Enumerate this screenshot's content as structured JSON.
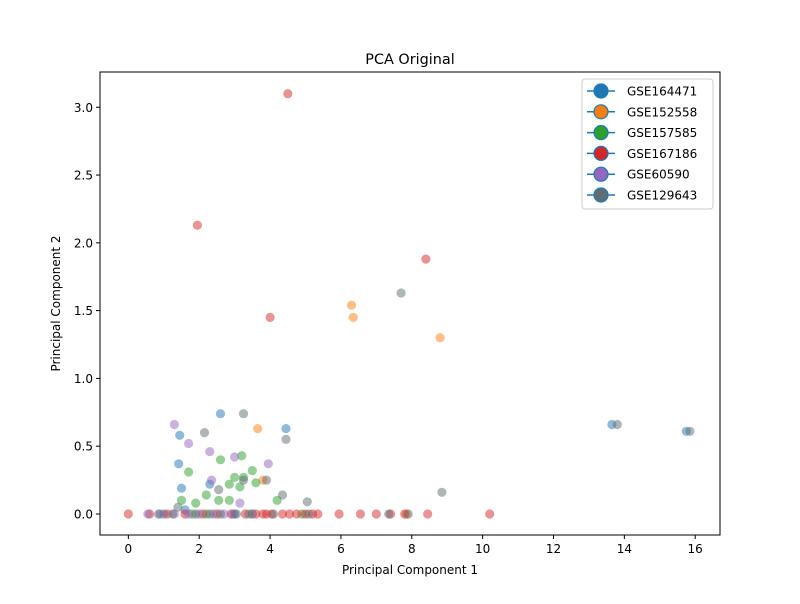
{
  "chart_data": {
    "type": "scatter",
    "title": "PCA Original",
    "xlabel": "Principal Component 1",
    "ylabel": "Principal Component 2",
    "xlim": [
      -0.8,
      16.7
    ],
    "ylim": [
      -0.155,
      3.26
    ],
    "x_ticks": [
      0,
      2,
      4,
      6,
      8,
      10,
      12,
      14,
      16
    ],
    "y_ticks": [
      0.0,
      0.5,
      1.0,
      1.5,
      2.0,
      2.5,
      3.0
    ],
    "x_tick_labels": [
      "0",
      "2",
      "4",
      "6",
      "8",
      "10",
      "12",
      "14",
      "16"
    ],
    "y_tick_labels": [
      "0.0",
      "0.5",
      "1.0",
      "1.5",
      "2.0",
      "2.5",
      "3.0"
    ],
    "grid": false,
    "legend_position": "top-right",
    "point_alpha": 0.5,
    "series": [
      {
        "name": "GSE164471",
        "color": "#1f77b4",
        "points": [
          [
            2.6,
            0.74
          ],
          [
            4.45,
            0.63
          ],
          [
            1.45,
            0.58
          ],
          [
            1.42,
            0.37
          ],
          [
            1.5,
            0.19
          ],
          [
            2.3,
            0.22
          ],
          [
            1.6,
            0.03
          ],
          [
            1.0,
            0.0
          ],
          [
            3.0,
            0.0
          ],
          [
            13.65,
            0.66
          ],
          [
            15.75,
            0.61
          ]
        ]
      },
      {
        "name": "GSE152558",
        "color": "#ff7f0e",
        "points": [
          [
            6.3,
            1.54
          ],
          [
            6.35,
            1.45
          ],
          [
            8.8,
            1.3
          ],
          [
            3.65,
            0.63
          ],
          [
            3.8,
            0.25
          ],
          [
            7.85,
            0.0
          ]
        ]
      },
      {
        "name": "GSE157585",
        "color": "#2ca02c",
        "points": [
          [
            1.7,
            0.31
          ],
          [
            2.6,
            0.4
          ],
          [
            3.2,
            0.43
          ],
          [
            3.5,
            0.32
          ],
          [
            3.0,
            0.27
          ],
          [
            2.85,
            0.22
          ],
          [
            3.6,
            0.23
          ],
          [
            3.25,
            0.27
          ],
          [
            2.2,
            0.14
          ],
          [
            2.55,
            0.1
          ],
          [
            2.85,
            0.1
          ],
          [
            4.2,
            0.1
          ],
          [
            1.5,
            0.1
          ],
          [
            1.9,
            0.08
          ],
          [
            3.15,
            0.2
          ],
          [
            2.2,
            0.0
          ],
          [
            1.8,
            0.0
          ],
          [
            3.5,
            0.0
          ],
          [
            4.9,
            0.0
          ]
        ]
      },
      {
        "name": "GSE167186",
        "color": "#d62728",
        "points": [
          [
            4.5,
            3.1
          ],
          [
            1.95,
            2.13
          ],
          [
            8.4,
            1.88
          ],
          [
            4.0,
            1.45
          ],
          [
            0.0,
            0.0
          ],
          [
            0.6,
            0.0
          ],
          [
            1.1,
            0.0
          ],
          [
            1.6,
            0.0
          ],
          [
            2.1,
            0.0
          ],
          [
            2.5,
            0.0
          ],
          [
            2.9,
            0.0
          ],
          [
            3.3,
            0.0
          ],
          [
            3.6,
            0.0
          ],
          [
            3.8,
            0.0
          ],
          [
            3.9,
            0.0
          ],
          [
            4.05,
            0.0
          ],
          [
            4.35,
            0.0
          ],
          [
            4.55,
            0.0
          ],
          [
            4.75,
            0.0
          ],
          [
            5.0,
            0.0
          ],
          [
            5.2,
            0.0
          ],
          [
            5.35,
            0.0
          ],
          [
            5.95,
            0.0
          ],
          [
            6.55,
            0.0
          ],
          [
            7.0,
            0.0
          ],
          [
            7.4,
            0.0
          ],
          [
            7.8,
            0.0
          ],
          [
            8.45,
            0.0
          ],
          [
            10.2,
            0.0
          ]
        ]
      },
      {
        "name": "GSE60590",
        "color": "#9467bd",
        "points": [
          [
            1.3,
            0.66
          ],
          [
            1.7,
            0.52
          ],
          [
            2.3,
            0.46
          ],
          [
            3.0,
            0.42
          ],
          [
            3.95,
            0.37
          ],
          [
            2.35,
            0.25
          ],
          [
            3.15,
            0.08
          ],
          [
            0.55,
            0.0
          ],
          [
            0.9,
            0.0
          ],
          [
            1.3,
            0.0
          ],
          [
            1.7,
            0.0
          ],
          [
            2.0,
            0.0
          ],
          [
            2.4,
            0.0
          ],
          [
            2.7,
            0.0
          ],
          [
            2.95,
            0.0
          ],
          [
            3.5,
            0.0
          ]
        ]
      },
      {
        "name": "GSE129643",
        "color": "#5f6e72",
        "points": [
          [
            3.25,
            0.74
          ],
          [
            7.7,
            1.63
          ],
          [
            4.45,
            0.55
          ],
          [
            2.15,
            0.6
          ],
          [
            3.25,
            0.25
          ],
          [
            3.9,
            0.25
          ],
          [
            2.55,
            0.18
          ],
          [
            4.35,
            0.14
          ],
          [
            5.05,
            0.09
          ],
          [
            8.85,
            0.16
          ],
          [
            1.4,
            0.05
          ],
          [
            0.85,
            0.0
          ],
          [
            1.25,
            0.0
          ],
          [
            1.9,
            0.0
          ],
          [
            2.3,
            0.0
          ],
          [
            2.6,
            0.0
          ],
          [
            3.05,
            0.0
          ],
          [
            3.4,
            0.0
          ],
          [
            4.1,
            0.0
          ],
          [
            5.1,
            0.0
          ],
          [
            7.35,
            0.0
          ],
          [
            7.9,
            0.0
          ],
          [
            13.8,
            0.66
          ],
          [
            15.85,
            0.61
          ]
        ]
      }
    ]
  }
}
